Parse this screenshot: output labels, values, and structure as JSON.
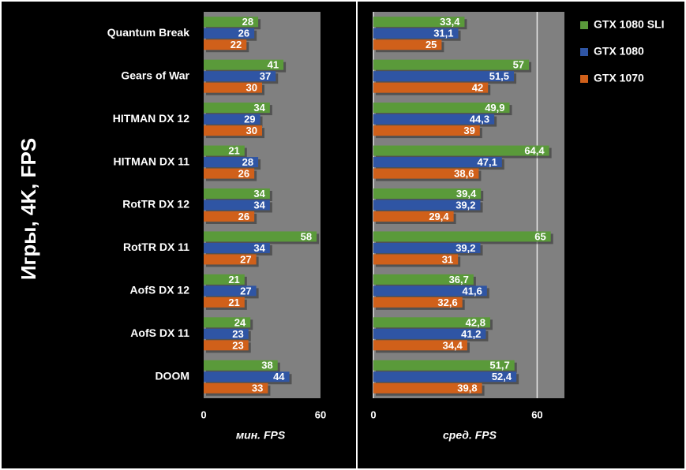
{
  "chart_data": [
    {
      "type": "bar",
      "title": "Игры, 4K, FPS",
      "xlabel": "мин. FPS",
      "categories": [
        "Quantum Break",
        "Gears of War",
        "HITMAN DX 12",
        "HITMAN DX 11",
        "RotTR DX 12",
        "RotTR DX 11",
        "AofS DX 12",
        "AofS DX 11",
        "DOOM"
      ],
      "series": [
        {
          "color": "#5a9a3a",
          "values": [
            28,
            41,
            34,
            21,
            34,
            58,
            21,
            24,
            38
          ]
        },
        {
          "color": "#2f55a4",
          "values": [
            26,
            37,
            29,
            28,
            34,
            34,
            27,
            23,
            44
          ]
        },
        {
          "color": "#d0601a",
          "values": [
            22,
            30,
            30,
            26,
            26,
            27,
            21,
            23,
            33
          ]
        }
      ],
      "xlim": [
        0,
        60
      ],
      "xticks": [
        0,
        60
      ]
    },
    {
      "type": "bar",
      "xlabel": "сред. FPS",
      "series": [
        {
          "name": "GTX 1080 SLI",
          "color": "#5a9a3a",
          "values": [
            33.4,
            57,
            49.9,
            64.4,
            39.4,
            65,
            36.7,
            42.8,
            51.7
          ],
          "value_labels": [
            "33,4",
            "57",
            "49,9",
            "64,4",
            "39,4",
            "65",
            "36,7",
            "42,8",
            "51,7"
          ]
        },
        {
          "name": "GTX 1080",
          "color": "#2f55a4",
          "values": [
            31.1,
            51.5,
            44.3,
            47.1,
            39.2,
            39.2,
            41.6,
            41.2,
            52.4
          ],
          "value_labels": [
            "31,1",
            "51,5",
            "44,3",
            "47,1",
            "39,2",
            "39,2",
            "41,6",
            "41,2",
            "52,4"
          ]
        },
        {
          "name": "GTX 1070",
          "color": "#d0601a",
          "values": [
            25,
            42,
            39,
            38.6,
            29.4,
            31,
            32.6,
            34.4,
            39.8
          ],
          "value_labels": [
            "25",
            "42",
            "39",
            "38,6",
            "29,4",
            "31",
            "32,6",
            "34,4",
            "39,8"
          ]
        }
      ],
      "xlim": [
        0,
        70
      ],
      "xticks": [
        0,
        60
      ],
      "grid": true
    }
  ]
}
